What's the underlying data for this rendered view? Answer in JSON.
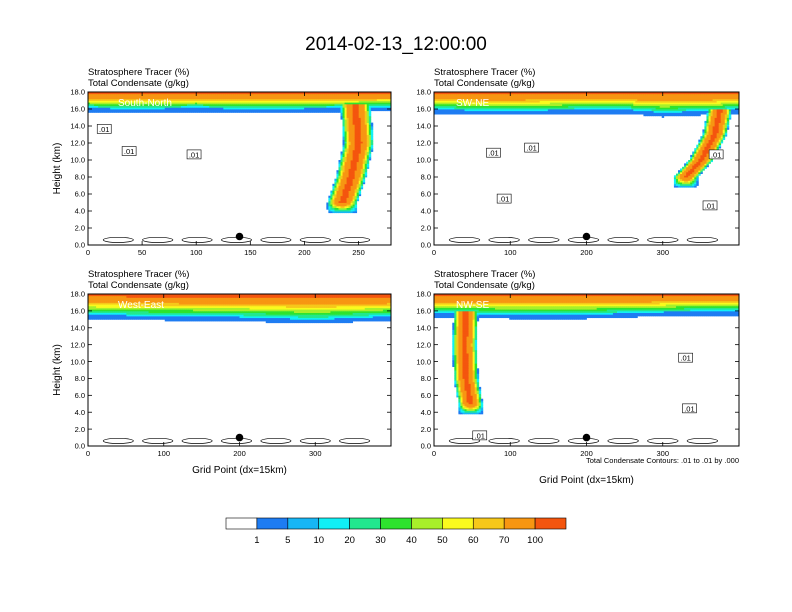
{
  "title": "2014-02-13_12:00:00",
  "colors": {
    "bins": [
      "#ffffff",
      "#1e7cf2",
      "#17b6f5",
      "#11f0f5",
      "#22e88e",
      "#2ee32e",
      "#a8f02a",
      "#fafa1e",
      "#f6c81a",
      "#f79612",
      "#f4550e",
      "#ee0f0f"
    ]
  },
  "colorbar": {
    "labels": [
      "1",
      "5",
      "10",
      "20",
      "30",
      "40",
      "50",
      "60",
      "70",
      "100"
    ]
  },
  "footnote": "Total Condensate Contours: .01 to .01 by .000",
  "chart_data": [
    {
      "type": "heatmap",
      "section_label": "South-North",
      "subtitle_lines": [
        "Stratosphere Tracer   (%)",
        "Total Condensate   (g/kg)"
      ],
      "ylabel": "Height (km)",
      "xlabel": "",
      "xlim": [
        0,
        280
      ],
      "ylim": [
        0,
        18
      ],
      "xticks": [
        0,
        50,
        100,
        150,
        200,
        250
      ],
      "yticks": [
        "0.0",
        "2.0",
        "4.0",
        "6.0",
        "8.0",
        "10.0",
        "12.0",
        "14.0",
        "16.0",
        "18.0"
      ],
      "tracer_floor_km": [
        [
          0,
          16.2
        ],
        [
          40,
          16.0
        ],
        [
          100,
          16.2
        ],
        [
          150,
          16.0
        ],
        [
          200,
          16.1
        ],
        [
          280,
          16.3
        ]
      ],
      "intrusions": [
        {
          "axis": [
            [
              247,
              16.5
            ],
            [
              250,
              12.0
            ],
            [
              243,
              8.0
            ],
            [
              235,
              5.0
            ]
          ],
          "half_width": 14
        }
      ],
      "contour_labels": [
        [
          15,
          13.6,
          ".01"
        ],
        [
          38,
          11.0,
          ".01"
        ],
        [
          98,
          10.6,
          ".01"
        ]
      ],
      "marker": {
        "x": 140,
        "y": 1.0
      }
    },
    {
      "type": "heatmap",
      "section_label": "SW-NE",
      "subtitle_lines": [
        "Stratosphere Tracer   (%)",
        "Total Condensate   (g/kg)"
      ],
      "ylabel": "",
      "xlabel": "",
      "xlim": [
        0,
        400
      ],
      "ylim": [
        0,
        18
      ],
      "xticks": [
        0,
        100,
        200,
        300
      ],
      "yticks": [
        "0.0",
        "2.0",
        "4.0",
        "6.0",
        "8.0",
        "10.0",
        "12.0",
        "14.0",
        "16.0",
        "18.0"
      ],
      "tracer_floor_km": [
        [
          0,
          16.0
        ],
        [
          80,
          15.8
        ],
        [
          150,
          15.9
        ],
        [
          250,
          16.0
        ],
        [
          300,
          15.6
        ],
        [
          400,
          16.0
        ]
      ],
      "intrusions": [
        {
          "axis": [
            [
              375,
              16.0
            ],
            [
              368,
              13.0
            ],
            [
              350,
              10.0
            ],
            [
              330,
              8.0
            ]
          ],
          "half_width": 16
        }
      ],
      "contour_labels": [
        [
          78,
          10.8,
          ".01"
        ],
        [
          128,
          11.4,
          ".01"
        ],
        [
          92,
          5.4,
          ".01"
        ],
        [
          370,
          10.6,
          ".01"
        ],
        [
          362,
          4.6,
          ".01"
        ]
      ],
      "marker": {
        "x": 200,
        "y": 1.0
      }
    },
    {
      "type": "heatmap",
      "section_label": "West-East",
      "subtitle_lines": [
        "Stratosphere Tracer   (%)",
        "Total Condensate   (g/kg)"
      ],
      "ylabel": "Height (km)",
      "xlabel": "Grid Point (dx=15km)",
      "xlim": [
        0,
        400
      ],
      "ylim": [
        0,
        18
      ],
      "xticks": [
        0,
        100,
        200,
        300
      ],
      "yticks": [
        "0.0",
        "2.0",
        "4.0",
        "6.0",
        "8.0",
        "10.0",
        "12.0",
        "14.0",
        "16.0",
        "18.0"
      ],
      "tracer_floor_km": [
        [
          0,
          15.6
        ],
        [
          100,
          15.4
        ],
        [
          200,
          15.3
        ],
        [
          300,
          15.0
        ],
        [
          400,
          15.4
        ]
      ],
      "intrusions": [],
      "contour_labels": [],
      "marker": {
        "x": 200,
        "y": 1.0
      }
    },
    {
      "type": "heatmap",
      "section_label": "NW-SE",
      "subtitle_lines": [
        "Stratosphere Tracer   (%)",
        "Total Condensate   (g/kg)"
      ],
      "ylabel": "",
      "xlabel": "Grid Point (dx=15km)",
      "xlim": [
        0,
        400
      ],
      "ylim": [
        0,
        18
      ],
      "xticks": [
        0,
        100,
        200,
        300
      ],
      "yticks": [
        "0.0",
        "2.0",
        "4.0",
        "6.0",
        "8.0",
        "10.0",
        "12.0",
        "14.0",
        "16.0",
        "18.0"
      ],
      "tracer_floor_km": [
        [
          0,
          15.8
        ],
        [
          100,
          15.6
        ],
        [
          200,
          15.6
        ],
        [
          300,
          15.9
        ],
        [
          400,
          16.0
        ]
      ],
      "intrusions": [
        {
          "axis": [
            [
              42,
              16.0
            ],
            [
              40,
              12.0
            ],
            [
              42,
              8.0
            ],
            [
              48,
              5.0
            ]
          ],
          "half_width": 16
        }
      ],
      "contour_labels": [
        [
          330,
          10.4,
          ".01"
        ],
        [
          335,
          4.4,
          ".01"
        ],
        [
          60,
          1.2,
          ".01"
        ]
      ],
      "marker": {
        "x": 200,
        "y": 1.0
      }
    }
  ]
}
